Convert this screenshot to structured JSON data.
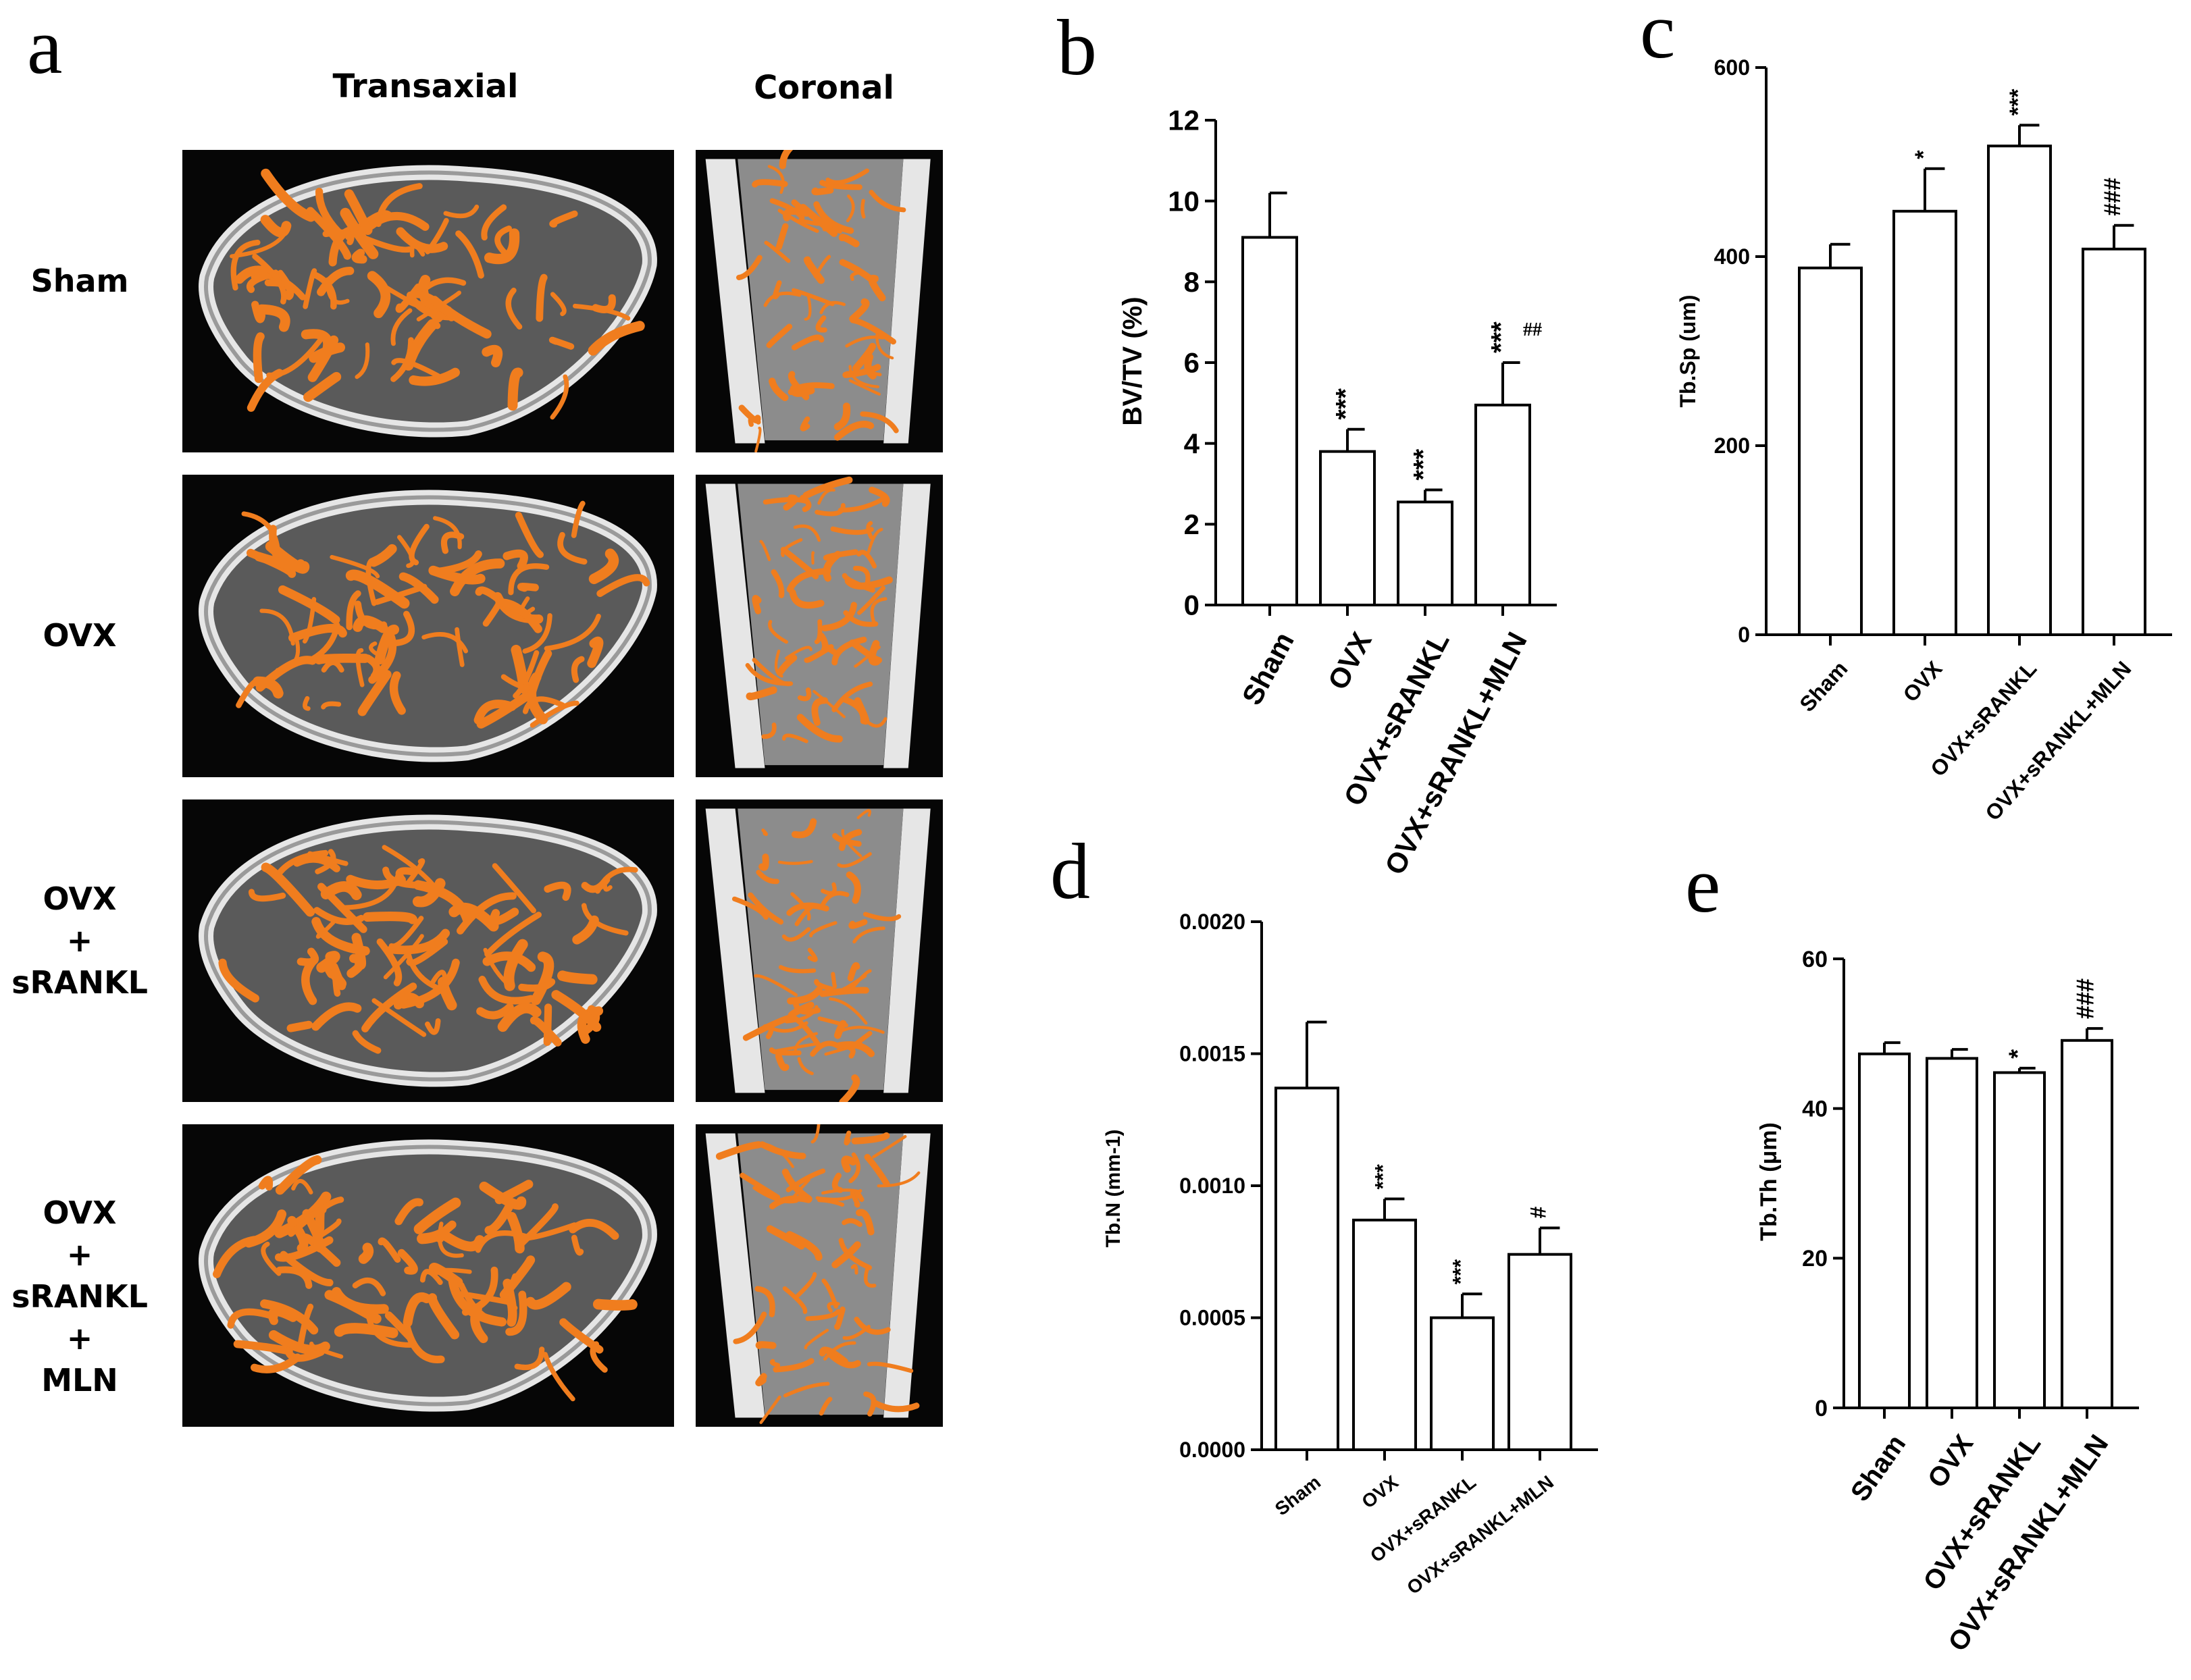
{
  "panel_a": {
    "letter": "a",
    "columns": [
      "Transaxial",
      "Coronal"
    ],
    "rows": [
      {
        "label": "Sham"
      },
      {
        "label": "OVX"
      },
      {
        "label": "OVX\n+\nsRANKL"
      },
      {
        "label": "OVX\n+\nsRANKL\n+\nMLN"
      }
    ],
    "colors": {
      "trabecular": "#f07d1e",
      "cortical": "#e6e6e6",
      "background": "#060606"
    }
  },
  "chart_data": [
    {
      "id": "b",
      "letter": "b",
      "type": "bar",
      "categories": [
        "Sham",
        "OVX",
        "OVX+sRANKL",
        "OVX+sRANKL+MLN"
      ],
      "values": [
        9.1,
        3.8,
        2.55,
        4.95
      ],
      "errors": [
        1.1,
        0.55,
        0.3,
        1.05
      ],
      "annotations": [
        "",
        "***",
        "***",
        "***"
      ],
      "annotations2": [
        "",
        "",
        "",
        "##"
      ],
      "ylabel": "BV/TV (%)",
      "ylim": [
        0,
        12
      ],
      "yticks": [
        "0",
        "2",
        "4",
        "6",
        "8",
        "10",
        "12"
      ]
    },
    {
      "id": "c",
      "letter": "c",
      "type": "bar",
      "categories": [
        "Sham",
        "OVX",
        "OVX+sRANKL",
        "OVX+sRANKL+MLN"
      ],
      "values": [
        388,
        448,
        517,
        408
      ],
      "errors": [
        25,
        45,
        22,
        25
      ],
      "annotations": [
        "",
        "*",
        "***",
        "###"
      ],
      "ylabel": "Tb.Sp (um)",
      "ylim": [
        0,
        600
      ],
      "yticks": [
        "0",
        "200",
        "400",
        "600"
      ]
    },
    {
      "id": "d",
      "letter": "d",
      "type": "bar",
      "categories": [
        "Sham",
        "OVX",
        "OVX+sRANKL",
        "OVX+sRANKL+MLN"
      ],
      "values": [
        0.00137,
        0.00087,
        0.0005,
        0.00074
      ],
      "errors": [
        0.00025,
        8e-05,
        9e-05,
        0.0001
      ],
      "annotations": [
        "",
        "***",
        "***",
        "#"
      ],
      "ylabel": "Tb.N (mm-1)",
      "ylim": [
        0,
        0.002
      ],
      "yticks": [
        "0.0000",
        "0.0005",
        "0.0010",
        "0.0015",
        "0.0020"
      ]
    },
    {
      "id": "e",
      "letter": "e",
      "type": "bar",
      "categories": [
        "Sham",
        "OVX",
        "OVX+sRANKL",
        "OVX+sRANKL+MLN"
      ],
      "values": [
        47.3,
        46.7,
        44.8,
        49.1
      ],
      "errors": [
        1.5,
        1.2,
        0.6,
        1.6
      ],
      "annotations": [
        "",
        "",
        "*",
        "###"
      ],
      "ylabel": "Tb.Th (μm)",
      "ylim": [
        0,
        60
      ],
      "yticks": [
        "0",
        "20",
        "40",
        "60"
      ]
    }
  ]
}
